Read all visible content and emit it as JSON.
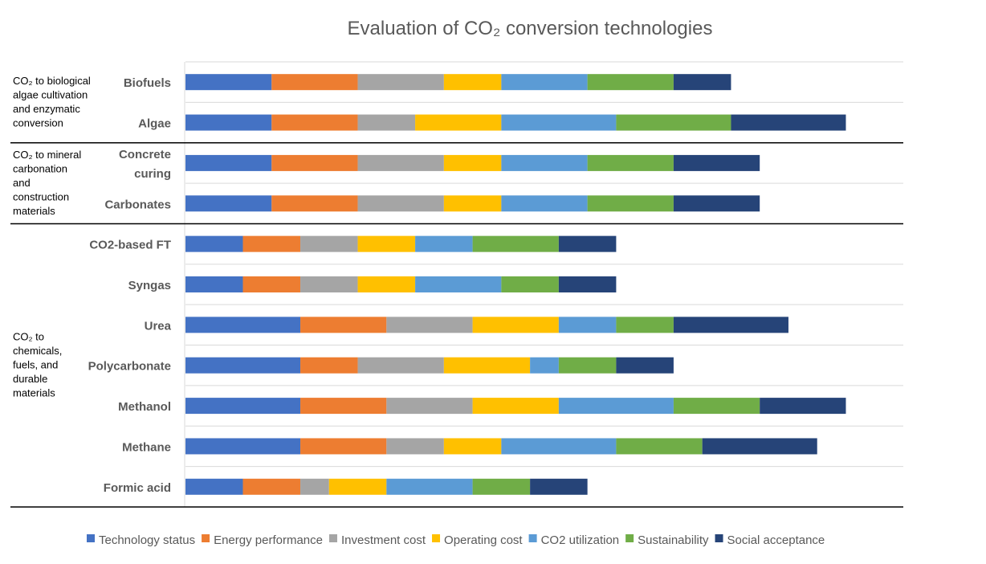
{
  "chart_data": {
    "type": "bar",
    "orientation": "horizontal",
    "stacked": true,
    "title": "Evaluation of CO₂ conversion technologies",
    "xlim": [
      0,
      25
    ],
    "grid": "horizontal separators",
    "legend_position": "bottom",
    "groups": [
      {
        "label": [
          "CO₂ to biological",
          "algae cultivation",
          "and enzymatic",
          "conversion"
        ],
        "categories": [
          "Biofuels",
          "Algae"
        ]
      },
      {
        "label": [
          "CO₂ to mineral",
          "carbonation",
          "and",
          "construction",
          "materials"
        ],
        "categories": [
          "Concrete curing",
          "Carbonates"
        ]
      },
      {
        "label": [
          "CO₂ to",
          "chemicals,",
          "fuels, and",
          "durable",
          "materials"
        ],
        "categories": [
          "CO2-based FT",
          "Syngas",
          "Urea",
          "Polycarbonate",
          "Methanol",
          "Methane",
          "Formic acid"
        ]
      }
    ],
    "categories": [
      "Biofuels",
      "Algae",
      "Concrete curing",
      "Carbonates",
      "CO2-based FT",
      "Syngas",
      "Urea",
      "Polycarbonate",
      "Methanol",
      "Methane",
      "Formic acid"
    ],
    "series": [
      {
        "name": "Technology status",
        "color": "#4472C4",
        "values": [
          3,
          3,
          3,
          3,
          2,
          2,
          4,
          4,
          4,
          4,
          2
        ]
      },
      {
        "name": "Energy performance",
        "color": "#ED7D31",
        "values": [
          3,
          3,
          3,
          3,
          2,
          2,
          3,
          2,
          3,
          3,
          2
        ]
      },
      {
        "name": "Investment cost",
        "color": "#A5A5A5",
        "values": [
          3,
          2,
          3,
          3,
          2,
          2,
          3,
          3,
          3,
          2,
          1
        ]
      },
      {
        "name": "Operating cost",
        "color": "#FFC000",
        "values": [
          2,
          3,
          2,
          2,
          2,
          2,
          3,
          3,
          3,
          2,
          2
        ]
      },
      {
        "name": "CO2 utilization",
        "color": "#5B9BD5",
        "values": [
          3,
          4,
          3,
          3,
          2,
          3,
          2,
          1,
          4,
          4,
          3
        ]
      },
      {
        "name": "Sustainability",
        "color": "#70AD47",
        "values": [
          3,
          4,
          3,
          3,
          3,
          2,
          2,
          2,
          3,
          3,
          2
        ]
      },
      {
        "name": "Social acceptance",
        "color": "#264478",
        "values": [
          2,
          4,
          3,
          3,
          2,
          2,
          4,
          2,
          3,
          4,
          2
        ]
      }
    ]
  }
}
